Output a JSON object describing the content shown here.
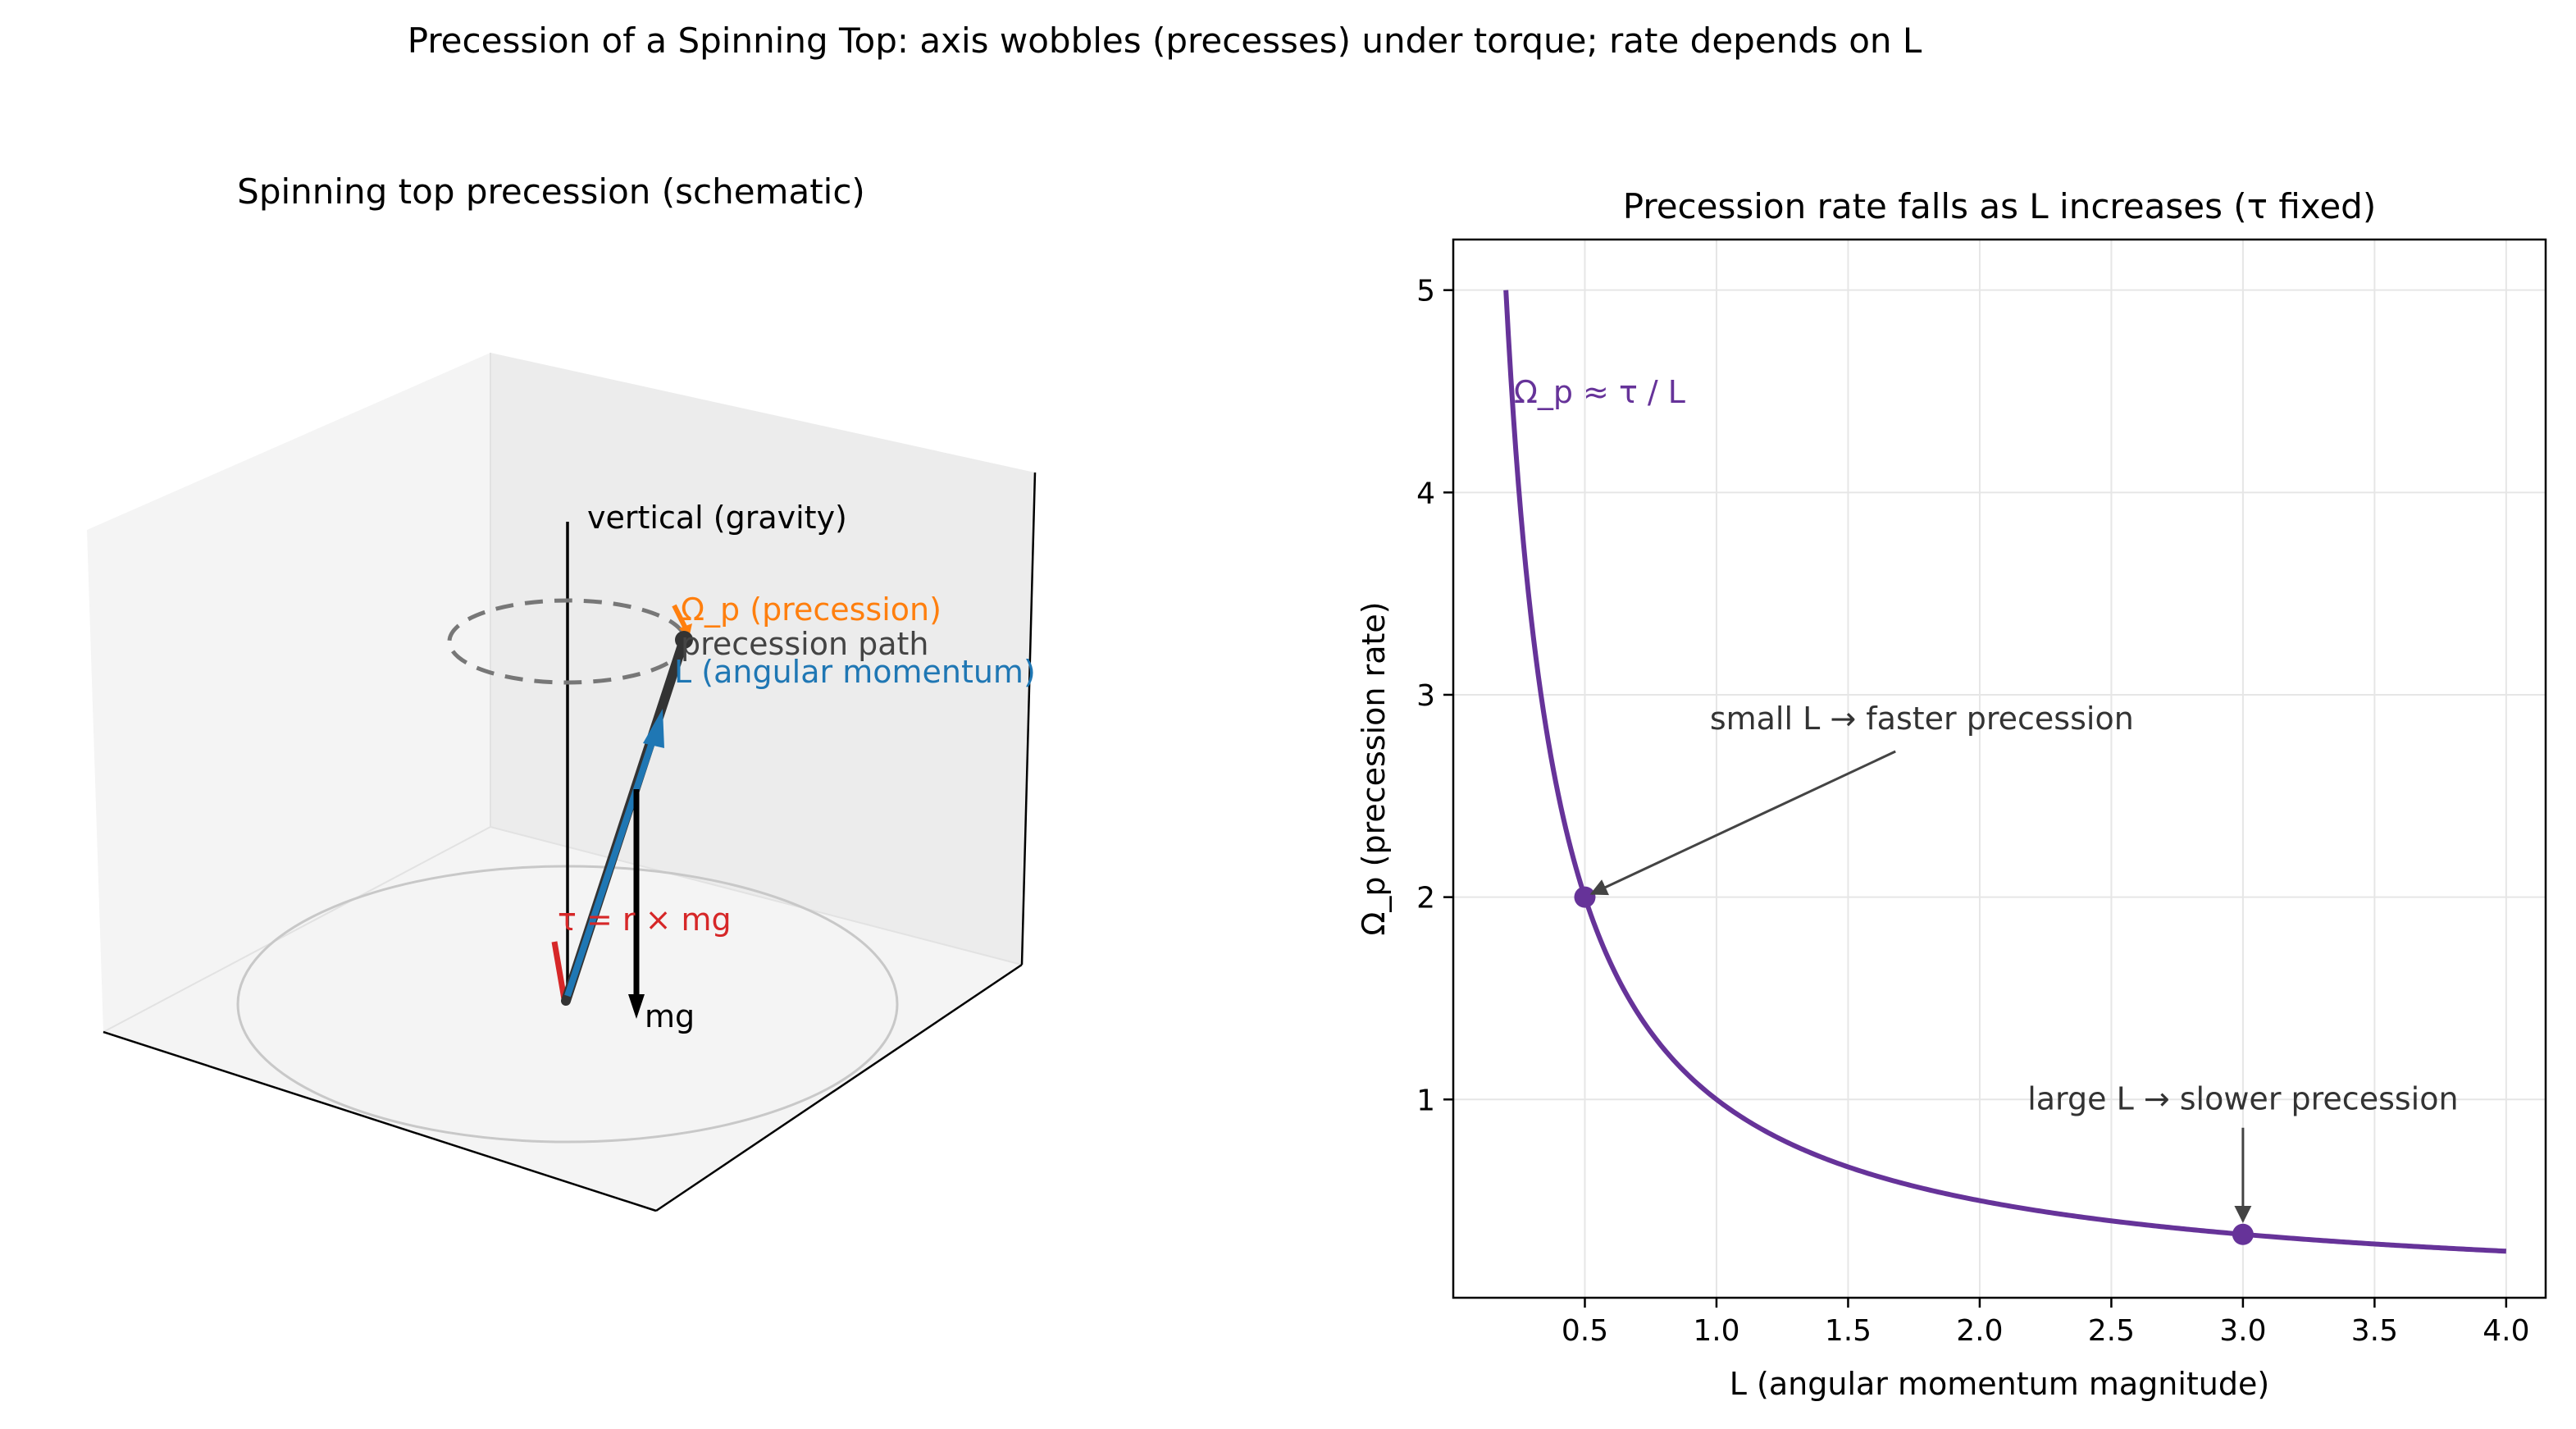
{
  "figure": {
    "suptitle": "Precession of a Spinning Top: axis wobbles (precesses) under torque; rate depends on L"
  },
  "schematic": {
    "title": "Spinning top precession (schematic)",
    "labels": {
      "vertical": "vertical (gravity)",
      "omega_p": "Ω_p (precession)",
      "path": "precession path",
      "L": "L (angular momentum)",
      "torque": "τ = r × mg",
      "mg": "mg"
    },
    "colors": {
      "vertical": "#000000",
      "omega_p": "#ff7f0e",
      "path": "#444444",
      "L": "#1f77b4",
      "torque": "#d62728",
      "mg": "#000000",
      "r": "#2ca02c",
      "axis_body": "#333333"
    }
  },
  "chart_data": {
    "type": "line",
    "title": "Precession rate falls as L increases (τ fixed)",
    "xlabel": "L (angular momentum magnitude)",
    "ylabel": "Ω_p (precession rate)",
    "xlim": [
      0.0,
      4.15
    ],
    "ylim": [
      0.02,
      5.25
    ],
    "xticks": [
      0.5,
      1.0,
      1.5,
      2.0,
      2.5,
      3.0,
      3.5,
      4.0
    ],
    "xtick_labels": [
      "0.5",
      "1.0",
      "1.5",
      "2.0",
      "2.5",
      "3.0",
      "3.5",
      "4.0"
    ],
    "yticks": [
      1,
      2,
      3,
      4,
      5
    ],
    "ytick_labels": [
      "1",
      "2",
      "3",
      "4",
      "5"
    ],
    "grid": true,
    "color": "#663399",
    "series": [
      {
        "x": [
          0.2,
          0.25,
          0.3,
          0.35,
          0.4,
          0.45,
          0.5,
          0.6,
          0.7,
          0.8,
          0.9,
          1.0,
          1.2,
          1.4,
          1.6,
          1.8,
          2.0,
          2.25,
          2.5,
          2.75,
          3.0,
          3.25,
          3.5,
          3.75,
          4.0
        ],
        "y": [
          5.0,
          4.0,
          3.333,
          2.857,
          2.5,
          2.222,
          2.0,
          1.667,
          1.429,
          1.25,
          1.111,
          1.0,
          0.833,
          0.714,
          0.625,
          0.556,
          0.5,
          0.444,
          0.4,
          0.364,
          0.333,
          0.308,
          0.286,
          0.267,
          0.25
        ]
      }
    ],
    "curve_label": "Ω_p ≈ τ / L",
    "points": [
      {
        "x": 0.5,
        "y": 2.0
      },
      {
        "x": 3.0,
        "y": 0.333
      }
    ],
    "annotations": [
      {
        "text": "small L → faster precession",
        "target": {
          "x": 0.5,
          "y": 2.0
        }
      },
      {
        "text": "large L → slower precession",
        "target": {
          "x": 3.0,
          "y": 0.333
        }
      }
    ]
  }
}
